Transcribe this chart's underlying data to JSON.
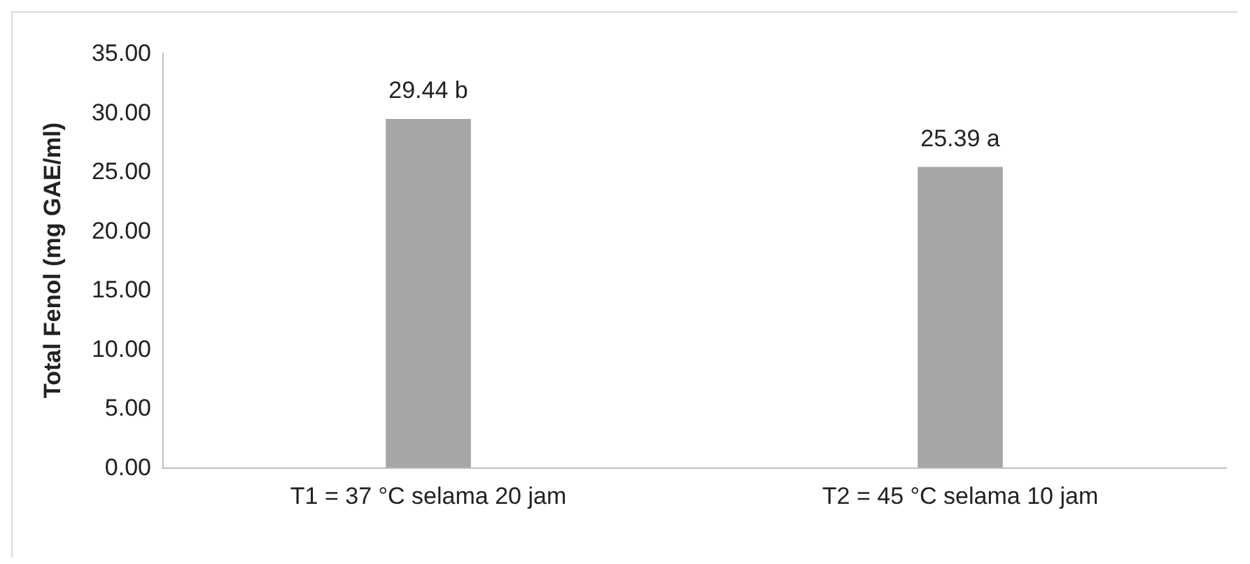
{
  "chart_data": {
    "type": "bar",
    "ylabel": "Total Fenol (mg GAE/ml)",
    "categories": [
      "T1 = 37 °C selama 20 jam",
      "T2 = 45 °C selama 10 jam"
    ],
    "values": [
      29.44,
      25.39
    ],
    "value_labels": [
      "29.44 b",
      "25.39 a"
    ],
    "color": "#a6a6a6",
    "ylim": [
      0,
      35
    ],
    "yticks": [
      {
        "value": 0,
        "label": "0.00"
      },
      {
        "value": 5,
        "label": "5.00"
      },
      {
        "value": 10,
        "label": "10.00"
      },
      {
        "value": 15,
        "label": "15.00"
      },
      {
        "value": 20,
        "label": "20.00"
      },
      {
        "value": 25,
        "label": "25.00"
      },
      {
        "value": 30,
        "label": "30.00"
      },
      {
        "value": 35,
        "label": "35.00"
      }
    ],
    "grid": false
  }
}
